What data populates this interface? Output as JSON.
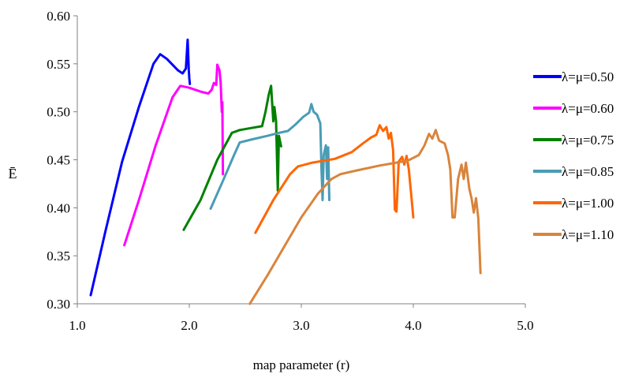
{
  "chart_data": {
    "type": "line",
    "title": "",
    "xlabel": "map parameter (r)",
    "ylabel": "Ē",
    "xlim": [
      1.0,
      5.0
    ],
    "ylim": [
      0.3,
      0.6
    ],
    "xticks": [
      "1.0",
      "2.0",
      "3.0",
      "4.0",
      "5.0"
    ],
    "yticks": [
      "0.30",
      "0.35",
      "0.40",
      "0.45",
      "0.50",
      "0.55",
      "0.60"
    ],
    "grid": false,
    "legend_position": "right",
    "series": [
      {
        "name": "λ=μ=0.50",
        "color": "#0000ff",
        "points": [
          [
            1.12,
            0.309
          ],
          [
            1.25,
            0.375
          ],
          [
            1.4,
            0.448
          ],
          [
            1.55,
            0.505
          ],
          [
            1.68,
            0.55
          ],
          [
            1.74,
            0.56
          ],
          [
            1.8,
            0.555
          ],
          [
            1.9,
            0.543
          ],
          [
            1.94,
            0.54
          ],
          [
            1.97,
            0.545
          ],
          [
            1.985,
            0.575
          ],
          [
            1.99,
            0.56
          ],
          [
            1.995,
            0.544
          ],
          [
            2.0,
            0.535
          ],
          [
            2.005,
            0.529
          ]
        ]
      },
      {
        "name": "λ=μ=0.60",
        "color": "#ff00ff",
        "points": [
          [
            1.42,
            0.361
          ],
          [
            1.55,
            0.408
          ],
          [
            1.7,
            0.465
          ],
          [
            1.85,
            0.515
          ],
          [
            1.92,
            0.527
          ],
          [
            2.0,
            0.525
          ],
          [
            2.1,
            0.521
          ],
          [
            2.17,
            0.519
          ],
          [
            2.2,
            0.523
          ],
          [
            2.22,
            0.53
          ],
          [
            2.24,
            0.528
          ],
          [
            2.25,
            0.549
          ],
          [
            2.27,
            0.543
          ],
          [
            2.28,
            0.53
          ],
          [
            2.29,
            0.5
          ],
          [
            2.295,
            0.51
          ],
          [
            2.3,
            0.435
          ]
        ]
      },
      {
        "name": "λ=μ=0.75",
        "color": "#008000",
        "points": [
          [
            1.95,
            0.377
          ],
          [
            2.1,
            0.408
          ],
          [
            2.25,
            0.45
          ],
          [
            2.38,
            0.478
          ],
          [
            2.45,
            0.481
          ],
          [
            2.55,
            0.483
          ],
          [
            2.65,
            0.485
          ],
          [
            2.68,
            0.5
          ],
          [
            2.71,
            0.518
          ],
          [
            2.73,
            0.527
          ],
          [
            2.75,
            0.49
          ],
          [
            2.76,
            0.505
          ],
          [
            2.775,
            0.49
          ],
          [
            2.79,
            0.418
          ],
          [
            2.8,
            0.475
          ],
          [
            2.82,
            0.464
          ]
        ]
      },
      {
        "name": "λ=μ=0.85",
        "color": "#4a9cb5",
        "points": [
          [
            2.19,
            0.399
          ],
          [
            2.3,
            0.428
          ],
          [
            2.4,
            0.455
          ],
          [
            2.45,
            0.468
          ],
          [
            2.55,
            0.471
          ],
          [
            2.7,
            0.475
          ],
          [
            2.8,
            0.478
          ],
          [
            2.88,
            0.48
          ],
          [
            2.95,
            0.487
          ],
          [
            3.02,
            0.495
          ],
          [
            3.07,
            0.499
          ],
          [
            3.09,
            0.508
          ],
          [
            3.11,
            0.5
          ],
          [
            3.14,
            0.497
          ],
          [
            3.17,
            0.488
          ],
          [
            3.18,
            0.44
          ],
          [
            3.19,
            0.408
          ],
          [
            3.2,
            0.455
          ],
          [
            3.22,
            0.465
          ],
          [
            3.23,
            0.43
          ],
          [
            3.24,
            0.463
          ],
          [
            3.25,
            0.408
          ]
        ]
      },
      {
        "name": "λ=μ=1.00",
        "color": "#ff6600",
        "points": [
          [
            2.59,
            0.374
          ],
          [
            2.75,
            0.408
          ],
          [
            2.9,
            0.435
          ],
          [
            2.97,
            0.443
          ],
          [
            3.1,
            0.447
          ],
          [
            3.3,
            0.451
          ],
          [
            3.45,
            0.458
          ],
          [
            3.55,
            0.467
          ],
          [
            3.62,
            0.473
          ],
          [
            3.67,
            0.476
          ],
          [
            3.7,
            0.486
          ],
          [
            3.73,
            0.48
          ],
          [
            3.76,
            0.484
          ],
          [
            3.78,
            0.472
          ],
          [
            3.8,
            0.478
          ],
          [
            3.82,
            0.46
          ],
          [
            3.835,
            0.398
          ],
          [
            3.85,
            0.396
          ],
          [
            3.87,
            0.448
          ],
          [
            3.9,
            0.453
          ],
          [
            3.92,
            0.445
          ],
          [
            3.94,
            0.454
          ],
          [
            3.96,
            0.44
          ],
          [
            3.98,
            0.415
          ],
          [
            4.0,
            0.39
          ]
        ]
      },
      {
        "name": "λ=μ=1.10",
        "color": "#d9843c",
        "points": [
          [
            2.54,
            0.3
          ],
          [
            2.7,
            0.33
          ],
          [
            2.85,
            0.36
          ],
          [
            3.0,
            0.39
          ],
          [
            3.15,
            0.415
          ],
          [
            3.27,
            0.43
          ],
          [
            3.35,
            0.435
          ],
          [
            3.5,
            0.439
          ],
          [
            3.7,
            0.444
          ],
          [
            3.85,
            0.447
          ],
          [
            3.95,
            0.449
          ],
          [
            4.05,
            0.455
          ],
          [
            4.1,
            0.465
          ],
          [
            4.14,
            0.477
          ],
          [
            4.17,
            0.472
          ],
          [
            4.2,
            0.481
          ],
          [
            4.23,
            0.47
          ],
          [
            4.28,
            0.467
          ],
          [
            4.31,
            0.455
          ],
          [
            4.33,
            0.44
          ],
          [
            4.35,
            0.39
          ],
          [
            4.37,
            0.39
          ],
          [
            4.4,
            0.43
          ],
          [
            4.43,
            0.445
          ],
          [
            4.45,
            0.43
          ],
          [
            4.47,
            0.447
          ],
          [
            4.5,
            0.42
          ],
          [
            4.52,
            0.41
          ],
          [
            4.54,
            0.395
          ],
          [
            4.56,
            0.41
          ],
          [
            4.58,
            0.389
          ],
          [
            4.6,
            0.332
          ]
        ]
      }
    ]
  }
}
